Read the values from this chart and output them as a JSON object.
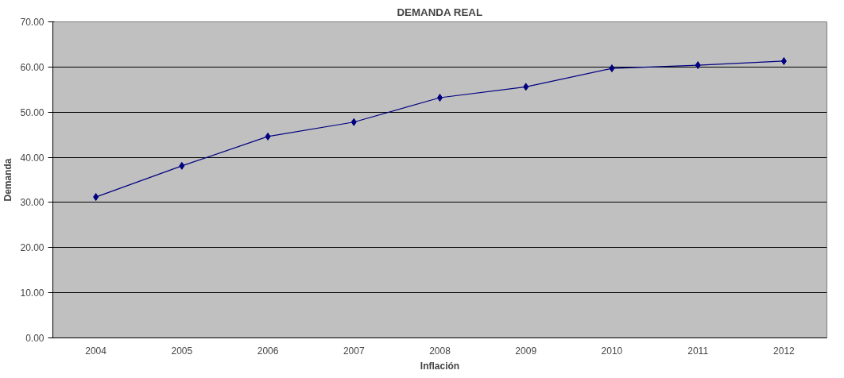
{
  "chart_data": {
    "type": "line",
    "title": "DEMANDA REAL",
    "xlabel": "Inflación",
    "ylabel": "Demanda",
    "categories": [
      "2004",
      "2005",
      "2006",
      "2007",
      "2008",
      "2009",
      "2010",
      "2011",
      "2012"
    ],
    "series": [
      {
        "color": "#000080",
        "values": [
          31.2,
          38.1,
          44.6,
          47.8,
          53.2,
          55.6,
          59.7,
          60.4,
          61.3
        ]
      }
    ],
    "ylim": [
      0,
      70
    ],
    "yticks": [
      {
        "value": 0,
        "label": "0.00"
      },
      {
        "value": 10,
        "label": "10.00"
      },
      {
        "value": 20,
        "label": "20.00"
      },
      {
        "value": 30,
        "label": "30.00"
      },
      {
        "value": 40,
        "label": "40.00"
      },
      {
        "value": 50,
        "label": "50.00"
      },
      {
        "value": 60,
        "label": "60.00"
      },
      {
        "value": 70,
        "label": "70.00"
      }
    ],
    "grid": "y",
    "marker": "diamond",
    "line_style": "solid"
  }
}
